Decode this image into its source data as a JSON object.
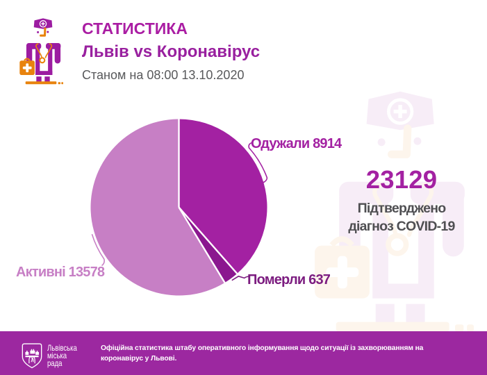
{
  "header": {
    "title": "СТАТИСТИКА",
    "subtitle": "Львів vs Коронавірус",
    "date_line": "Станом на 08:00 13.10.2020"
  },
  "chart_data": {
    "type": "pie",
    "title": "Львів vs Коронавірус",
    "total": 23129,
    "slices": [
      {
        "label": "Одужали",
        "value": 8914,
        "color": "#a321a2",
        "label_color": "#a321a2",
        "label_text": "Одужали 8914"
      },
      {
        "label": "Померли",
        "value": 637,
        "color": "#8b178f",
        "label_color": "#7c1d80",
        "label_text": "Померли 637"
      },
      {
        "label": "Активні",
        "value": 13578,
        "color": "#c77fc5",
        "label_color": "#c77fc5",
        "label_text": "Активні 13578"
      }
    ],
    "start_angle_deg": 0,
    "clockwise": true,
    "separator_color": "#ffffff"
  },
  "summary": {
    "total": "23129",
    "caption_line1": "Підтверджено",
    "caption_line2": "діагноз COVID-19"
  },
  "footer": {
    "background": "#9c28a0",
    "org_line1": "Львівська",
    "org_line2": "міська",
    "org_line3": "рада",
    "text_line1": "Офіційна статистика штабу оперативного інформування щодо ситуації із захворюванням на",
    "text_line2": "коронавірус у Львові."
  },
  "colors": {
    "accent": "#a321a2",
    "light": "#c77fc5",
    "dark": "#8b178f",
    "orange": "#e8830e",
    "icon_purple": "#9c1ca1",
    "footer_bg": "#9c28a0",
    "text_gray": "#58595b",
    "text_dark": "#4f4f52"
  }
}
